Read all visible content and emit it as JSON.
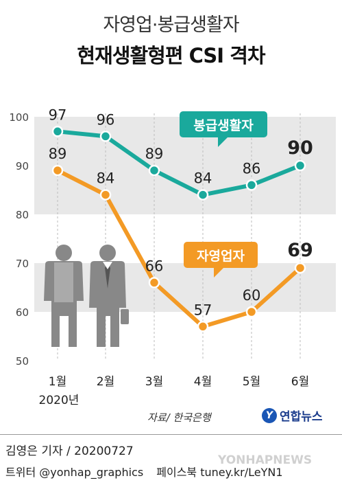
{
  "header": {
    "title_line1": "자영업·봉급생활자",
    "title_line2": "현재생활형편 CSI 격차"
  },
  "chart_data": {
    "type": "line",
    "categories": [
      "1월",
      "2월",
      "3월",
      "4월",
      "5월",
      "6월"
    ],
    "year_label": "2020년",
    "ylim": [
      50,
      100
    ],
    "yticks": [
      50,
      60,
      70,
      80,
      90,
      100
    ],
    "grid": "alternating horizontal bands",
    "series": [
      {
        "name": "봉급생활자",
        "color": "#1aa99c",
        "values": [
          97,
          96,
          89,
          84,
          86,
          90
        ]
      },
      {
        "name": "자영업자",
        "color": "#f39a25",
        "values": [
          89,
          84,
          66,
          57,
          60,
          69
        ]
      }
    ]
  },
  "footer": {
    "source": "자료/ 한국은행",
    "logo_text": "연합뉴스",
    "reporter": "김영은 기자 / 20200727",
    "twitter": "트위터 @yonhap_graphics",
    "facebook": "페이스북 tuney.kr/LeYN1",
    "watermark": "YONHAPNEWS"
  },
  "icons": [
    "person-apron-icon",
    "businessman-icon",
    "briefcase-icon"
  ]
}
